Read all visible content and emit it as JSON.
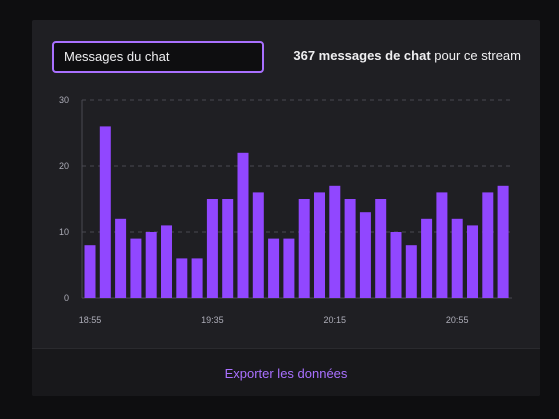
{
  "metric_select": {
    "value": "Messages du chat"
  },
  "summary": {
    "count_text": "367 messages de chat",
    "suffix": " pour ce stream"
  },
  "footer": {
    "export_label": "Exporter les données"
  },
  "colors": {
    "accent": "#a970ff",
    "bar": "#9147ff",
    "background": "#1f1f23",
    "footer_background": "#18181b",
    "text": "#efeff1",
    "muted_text": "#adadb8"
  },
  "chart_data": {
    "type": "bar",
    "title": "",
    "xlabel": "",
    "ylabel": "",
    "ylim": [
      0,
      30
    ],
    "yticks": [
      0,
      10,
      20,
      30
    ],
    "grid": true,
    "legend": "none",
    "x_tick_labels": [
      {
        "label": "18:55",
        "index": 0
      },
      {
        "label": "19:35",
        "index": 8
      },
      {
        "label": "20:15",
        "index": 16
      },
      {
        "label": "20:55",
        "index": 24
      }
    ],
    "values": [
      8,
      26,
      12,
      9,
      10,
      11,
      6,
      6,
      15,
      15,
      22,
      16,
      9,
      9,
      15,
      16,
      17,
      15,
      13,
      15,
      10,
      8,
      12,
      16,
      12,
      11,
      16,
      17
    ]
  }
}
